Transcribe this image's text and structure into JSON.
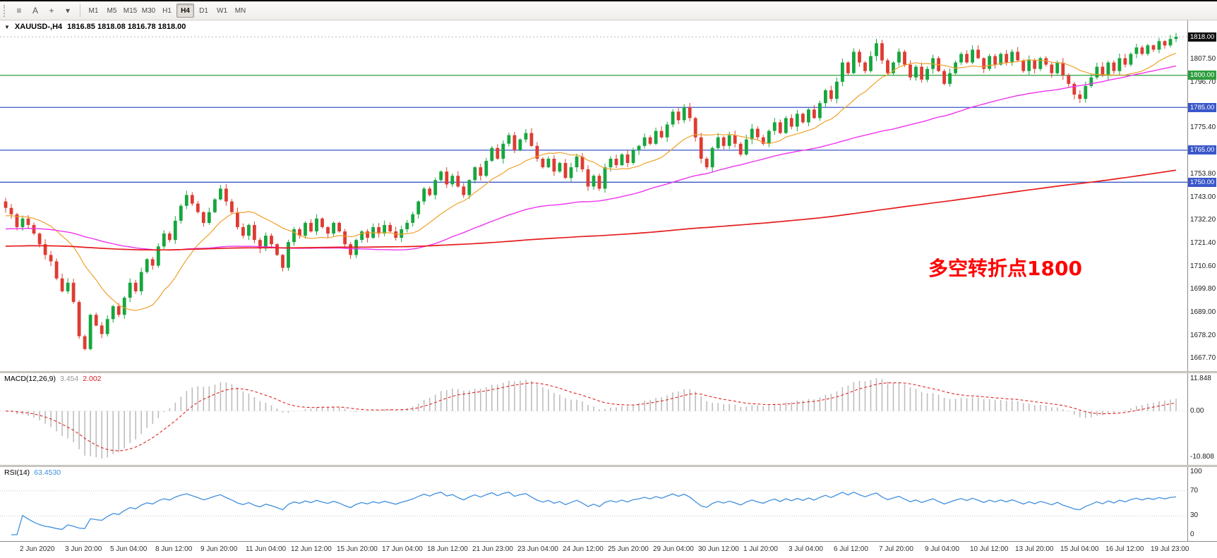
{
  "toolbar": {
    "left_icons": [
      {
        "name": "indicator-list-icon",
        "glyph": "≡"
      },
      {
        "name": "text-label-tool-icon",
        "glyph": "A"
      },
      {
        "name": "crosshair-tool-icon",
        "glyph": "+"
      },
      {
        "name": "tool-dropdown-icon",
        "glyph": "▾"
      }
    ],
    "timeframes": [
      {
        "label": "M1"
      },
      {
        "label": "M5"
      },
      {
        "label": "M15"
      },
      {
        "label": "M30"
      },
      {
        "label": "H1"
      },
      {
        "label": "H4",
        "active": true
      },
      {
        "label": "D1"
      },
      {
        "label": "W1"
      },
      {
        "label": "MN"
      }
    ]
  },
  "chart": {
    "collapse_icon": "▼",
    "title_symbol": "XAUUSD-,H4",
    "ohlc": "1816.85 1818.08 1816.78 1818.00",
    "current_price_tag": "1818.00",
    "annotation": {
      "text": "多空转折点1800",
      "color": "#ff0000"
    },
    "levels": [
      {
        "label": "1800.00",
        "price": 1800,
        "color": "#2e9e3e"
      },
      {
        "label": "1785.00",
        "price": 1785,
        "color": "#3a57c9"
      },
      {
        "label": "1765.00",
        "price": 1765,
        "color": "#3a57c9"
      },
      {
        "label": "1750.00",
        "price": 1750,
        "color": "#3a57c9"
      }
    ],
    "axis_ticks": [
      "1807.50",
      "1796.70",
      "1775.40",
      "1753.80",
      "1743.00",
      "1732.20",
      "1721.40",
      "1710.60",
      "1699.80",
      "1689.00",
      "1678.20",
      "1667.70"
    ]
  },
  "macd": {
    "label": "MACD(12,26,9)",
    "value_main": "3.454",
    "value_signal": "2.002",
    "axis": [
      "11.848",
      "0.00",
      "-10.808"
    ]
  },
  "rsi": {
    "label": "RSI(14)",
    "value": "63.4530",
    "axis": [
      "100",
      "70",
      "30",
      "0"
    ]
  },
  "time_axis": {
    "labels": [
      "2 Jun 2020",
      "3 Jun 20:00",
      "5 Jun 04:00",
      "8 Jun 12:00",
      "9 Jun 20:00",
      "11 Jun 04:00",
      "12 Jun 12:00",
      "15 Jun 20:00",
      "17 Jun 04:00",
      "18 Jun 12:00",
      "21 Jun 23:00",
      "23 Jun 04:00",
      "24 Jun 12:00",
      "25 Jun 20:00",
      "29 Jun 04:00",
      "30 Jun 12:00",
      "1 Jul 20:00",
      "3 Jul 04:00",
      "6 Jul 12:00",
      "7 Jul 20:00",
      "9 Jul 04:00",
      "10 Jul 12:00",
      "13 Jul 20:00",
      "15 Jul 04:00",
      "16 Jul 12:00",
      "19 Jul 23:00"
    ]
  },
  "chart_data": {
    "type": "candlestick",
    "symbol": "XAUUSD",
    "timeframe": "H4",
    "title": "XAUUSD-,H4 1816.85 1818.08 1816.78 1818.00",
    "ylim": [
      1664,
      1824
    ],
    "up_color": "#16a63e",
    "down_color": "#de3c32",
    "wick_seed": 20200719,
    "wick_amp": 1.9,
    "hlines": [
      1800,
      1785,
      1765,
      1750
    ],
    "ma": [
      {
        "name": "ma-fast",
        "period": 14,
        "pad": 1734,
        "color": "#f0a02a",
        "width": 1.2
      },
      {
        "name": "ma-medium",
        "period": 65,
        "pad": 1728,
        "color": "#ee33ee",
        "width": 1.4
      },
      {
        "name": "ma-slow",
        "period": 240,
        "pad": 1720,
        "color": "#e51c1c",
        "width": 1.7
      }
    ],
    "closes": [
      1738,
      1735,
      1729,
      1733,
      1730,
      1726,
      1721,
      1716,
      1713,
      1705,
      1699,
      1703,
      1694,
      1678,
      1672,
      1688,
      1683,
      1679,
      1686,
      1692,
      1688,
      1696,
      1703,
      1699,
      1708,
      1714,
      1711,
      1720,
      1726,
      1723,
      1732,
      1739,
      1744,
      1740,
      1736,
      1731,
      1736,
      1742,
      1747,
      1741,
      1736,
      1729,
      1725,
      1730,
      1723,
      1719,
      1725,
      1721,
      1716,
      1710,
      1722,
      1728,
      1725,
      1731,
      1727,
      1733,
      1729,
      1726,
      1731,
      1727,
      1721,
      1716,
      1723,
      1727,
      1724,
      1729,
      1726,
      1730,
      1727,
      1724,
      1728,
      1731,
      1735,
      1741,
      1747,
      1744,
      1751,
      1755,
      1749,
      1753,
      1748,
      1744,
      1751,
      1757,
      1753,
      1760,
      1766,
      1761,
      1768,
      1772,
      1765,
      1770,
      1773,
      1767,
      1761,
      1757,
      1761,
      1755,
      1759,
      1752,
      1757,
      1762,
      1756,
      1748,
      1753,
      1747,
      1757,
      1761,
      1758,
      1763,
      1759,
      1765,
      1767,
      1771,
      1768,
      1774,
      1771,
      1777,
      1783,
      1779,
      1785,
      1780,
      1771,
      1761,
      1757,
      1766,
      1771,
      1767,
      1772,
      1768,
      1763,
      1770,
      1775,
      1771,
      1768,
      1774,
      1778,
      1773,
      1780,
      1776,
      1782,
      1778,
      1784,
      1780,
      1787,
      1793,
      1789,
      1797,
      1806,
      1801,
      1811,
      1806,
      1802,
      1809,
      1815,
      1807,
      1801,
      1806,
      1811,
      1805,
      1799,
      1804,
      1798,
      1803,
      1808,
      1802,
      1796,
      1801,
      1806,
      1810,
      1806,
      1812,
      1808,
      1803,
      1809,
      1805,
      1810,
      1806,
      1811,
      1807,
      1802,
      1807,
      1803,
      1808,
      1805,
      1801,
      1806,
      1800,
      1796,
      1791,
      1789,
      1795,
      1799,
      1804,
      1800,
      1806,
      1802,
      1808,
      1805,
      1810,
      1813,
      1810,
      1814,
      1812,
      1816,
      1814,
      1817,
      1818
    ]
  }
}
